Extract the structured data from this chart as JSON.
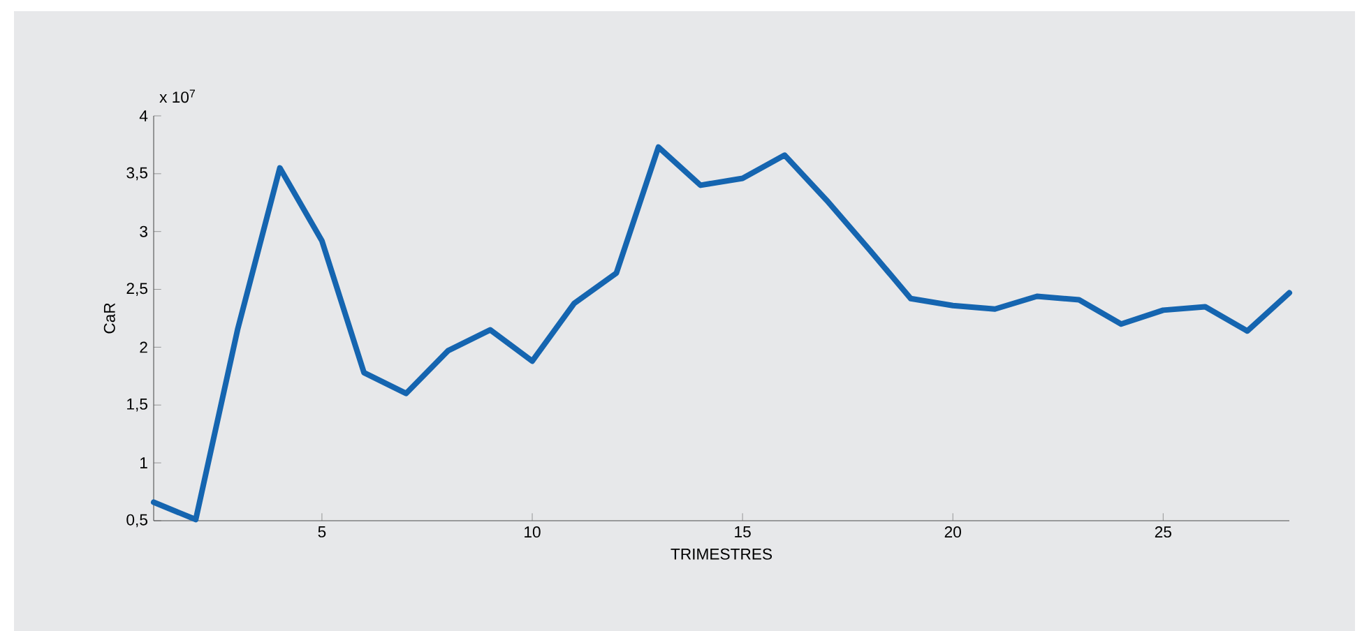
{
  "chart_data": {
    "type": "line",
    "xlabel": "TRIMESTRES",
    "ylabel": "CaR",
    "annotations": [
      "x 10$^{7}$"
    ],
    "x": [
      1,
      2,
      3,
      4,
      5,
      6,
      7,
      8,
      9,
      10,
      11,
      12,
      13,
      14,
      15,
      16,
      17,
      18,
      19,
      20,
      21,
      22,
      23,
      24,
      25,
      26,
      27,
      28
    ],
    "series": [
      {
        "color": "#1565b0",
        "values": [
          0.66,
          0.51,
          2.16,
          3.55,
          2.92,
          1.78,
          1.6,
          1.97,
          2.15,
          1.88,
          2.38,
          2.64,
          3.73,
          3.4,
          3.46,
          3.66,
          3.27,
          2.85,
          2.42,
          2.36,
          2.33,
          2.44,
          2.41,
          2.2,
          2.32,
          2.35,
          2.14,
          2.47
        ]
      }
    ],
    "xlim": [
      1,
      28
    ],
    "ylim": [
      0.5,
      4
    ],
    "xticks": [
      5,
      10,
      15,
      20,
      25
    ],
    "yticks": [
      {
        "value": 0.5,
        "label": "0,5"
      },
      1,
      {
        "value": 1.5,
        "label": "1,5"
      },
      2,
      {
        "value": 2.5,
        "label": "2,5"
      },
      3,
      {
        "value": 3.5,
        "label": "3,5"
      },
      4
    ]
  }
}
